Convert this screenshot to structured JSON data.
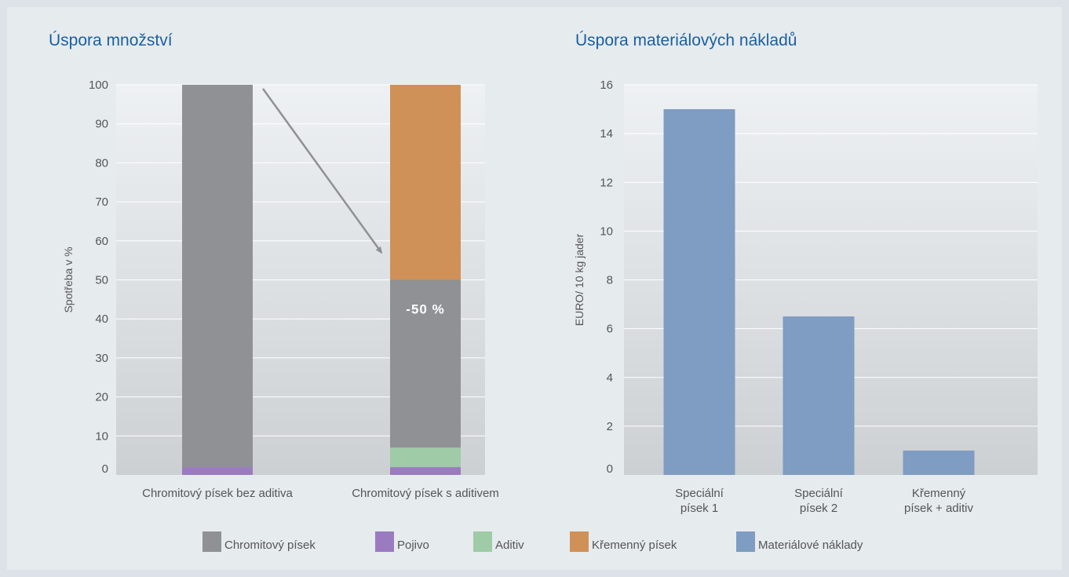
{
  "chart_data": [
    {
      "type": "bar",
      "stacked": true,
      "title": "Úspora množství",
      "ylabel": "Spotřeba v %",
      "ylim": [
        0,
        100
      ],
      "yticks": [
        0,
        10,
        20,
        30,
        40,
        50,
        60,
        70,
        80,
        90,
        100
      ],
      "categories": [
        "Chromitový písek bez aditiva",
        "Chromitový písek s aditivem"
      ],
      "series": [
        {
          "name": "Pojivo",
          "values": [
            2,
            2
          ],
          "color": "#9b7bc0"
        },
        {
          "name": "Aditiv",
          "values": [
            0,
            5
          ],
          "color": "#9fcba6"
        },
        {
          "name": "Chromitový písek",
          "values": [
            98,
            43
          ],
          "color": "#8f9195"
        },
        {
          "name": "Křemenný písek",
          "values": [
            0,
            50
          ],
          "color": "#cf9158"
        }
      ],
      "annotation": {
        "text": "-50 %",
        "color": "#ffffff"
      },
      "grid": true
    },
    {
      "type": "bar",
      "title": "Úspora materiálových nákladů",
      "ylabel": "EURO/ 10 kg jader",
      "ylim": [
        0,
        16
      ],
      "yticks": [
        0,
        2,
        4,
        6,
        8,
        10,
        12,
        14,
        16
      ],
      "categories": [
        [
          "Speciální",
          "písek 1"
        ],
        [
          "Speciální",
          "písek 2"
        ],
        [
          "Křemenný",
          "písek + aditiv"
        ]
      ],
      "series": [
        {
          "name": "Materiálové náklady",
          "values": [
            15,
            6.5,
            1
          ],
          "color": "#7f9cc2"
        }
      ],
      "grid": true
    }
  ],
  "legend": [
    {
      "label": "Chromitový písek",
      "color": "#8f9195"
    },
    {
      "label": "Pojivo",
      "color": "#9b7bc0"
    },
    {
      "label": "Aditiv",
      "color": "#9fcba6"
    },
    {
      "label": "Křemenný písek",
      "color": "#cf9158"
    },
    {
      "label": "Materiálové náklady",
      "color": "#7f9cc2"
    }
  ]
}
